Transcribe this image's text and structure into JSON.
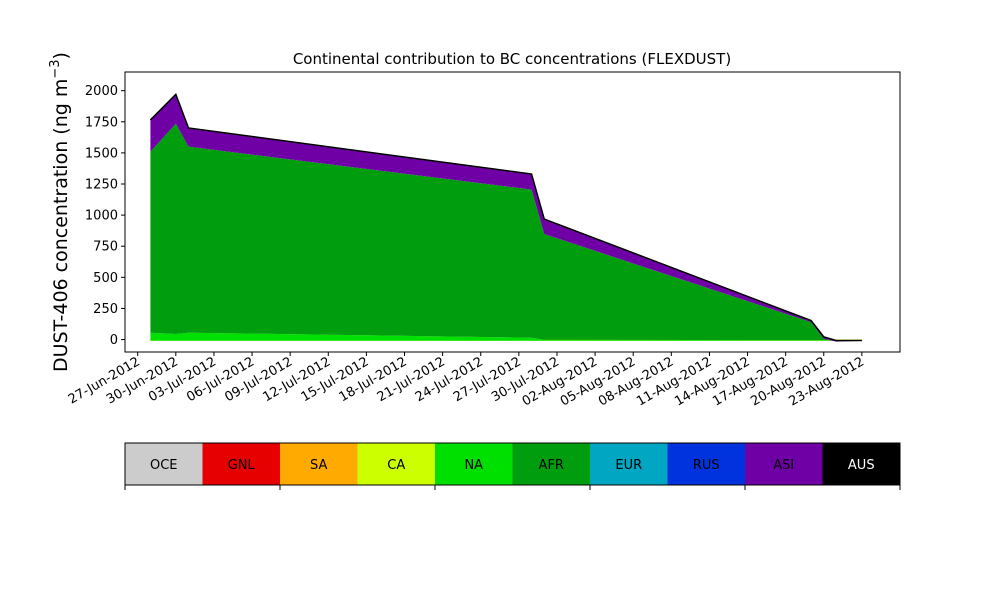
{
  "chart_data": {
    "type": "area",
    "stacked": true,
    "title": "Continental contribution to BC concentrations (FLEXDUST)",
    "ylabel": "DUST-406 concentration (ng m",
    "ylabel_sup": "−3",
    "ylabel_close": ")",
    "ylim": [
      -100,
      2150
    ],
    "yticks": [
      0,
      250,
      500,
      750,
      1000,
      1250,
      1500,
      1750,
      2000
    ],
    "xlim": [
      "2012-06-26",
      "2012-08-26"
    ],
    "xtick_dates": [
      "2012-06-27",
      "2012-06-30",
      "2012-07-03",
      "2012-07-06",
      "2012-07-09",
      "2012-07-12",
      "2012-07-15",
      "2012-07-18",
      "2012-07-21",
      "2012-07-24",
      "2012-07-27",
      "2012-07-30",
      "2012-08-02",
      "2012-08-05",
      "2012-08-08",
      "2012-08-11",
      "2012-08-14",
      "2012-08-17",
      "2012-08-20",
      "2012-08-23"
    ],
    "xtick_labels": [
      "27-Jun-2012",
      "30-Jun-2012",
      "03-Jul-2012",
      "06-Jul-2012",
      "09-Jul-2012",
      "12-Jul-2012",
      "15-Jul-2012",
      "18-Jul-2012",
      "21-Jul-2012",
      "24-Jul-2012",
      "27-Jul-2012",
      "30-Jul-2012",
      "02-Aug-2012",
      "05-Aug-2012",
      "08-Aug-2012",
      "11-Aug-2012",
      "14-Aug-2012",
      "17-Aug-2012",
      "20-Aug-2012",
      "23-Aug-2012"
    ],
    "x": [
      "2012-06-28",
      "2012-06-30",
      "2012-07-01",
      "2012-07-28",
      "2012-07-29",
      "2012-08-19",
      "2012-08-20",
      "2012-08-21",
      "2012-08-23"
    ],
    "series": [
      {
        "name": "OCE",
        "color": "#cccccc",
        "values": [
          0,
          0,
          0,
          0,
          0,
          0,
          0,
          0,
          0
        ]
      },
      {
        "name": "GNL",
        "color": "#e60000",
        "values": [
          0,
          0,
          0,
          0,
          0,
          0,
          0,
          0,
          0
        ]
      },
      {
        "name": "SA",
        "color": "#ffaa00",
        "values": [
          0,
          0,
          0,
          0,
          0,
          0,
          0,
          0,
          0
        ]
      },
      {
        "name": "CA",
        "color": "#ccff00",
        "values": [
          -10,
          -10,
          -10,
          -10,
          -10,
          -10,
          -10,
          -10,
          -10
        ]
      },
      {
        "name": "NA",
        "color": "#00e000",
        "values": [
          65,
          55,
          65,
          25,
          8,
          5,
          5,
          3,
          2
        ]
      },
      {
        "name": "AFR",
        "color": "#009e0e",
        "values": [
          1455,
          1690,
          1495,
          1190,
          850,
          145,
          10,
          -10,
          -2
        ]
      },
      {
        "name": "EUR",
        "color": "#00a6c2",
        "values": [
          0,
          0,
          0,
          0,
          0,
          0,
          0,
          0,
          0
        ]
      },
      {
        "name": "RUS",
        "color": "#0033dd",
        "values": [
          0,
          0,
          0,
          0,
          0,
          0,
          0,
          0,
          0
        ]
      },
      {
        "name": "ASI",
        "color": "#6f00a6",
        "values": [
          250,
          230,
          145,
          120,
          115,
          10,
          15,
          7,
          0
        ]
      },
      {
        "name": "AUS",
        "color": "#000000",
        "values": [
          5,
          5,
          5,
          5,
          5,
          3,
          2,
          2,
          2
        ]
      }
    ]
  },
  "legend": {
    "items": [
      {
        "label": "OCE",
        "bg": "#cccccc",
        "fg": "#000000"
      },
      {
        "label": "GNL",
        "bg": "#e60000",
        "fg": "#000000"
      },
      {
        "label": "SA",
        "bg": "#ffaa00",
        "fg": "#000000"
      },
      {
        "label": "CA",
        "bg": "#ccff00",
        "fg": "#000000"
      },
      {
        "label": "NA",
        "bg": "#00e000",
        "fg": "#000000"
      },
      {
        "label": "AFR",
        "bg": "#009e0e",
        "fg": "#000000"
      },
      {
        "label": "EUR",
        "bg": "#00a6c2",
        "fg": "#000000"
      },
      {
        "label": "RUS",
        "bg": "#0033dd",
        "fg": "#000000"
      },
      {
        "label": "ASI",
        "bg": "#6f00a6",
        "fg": "#000000"
      },
      {
        "label": "AUS",
        "bg": "#000000",
        "fg": "#ffffff"
      }
    ]
  }
}
